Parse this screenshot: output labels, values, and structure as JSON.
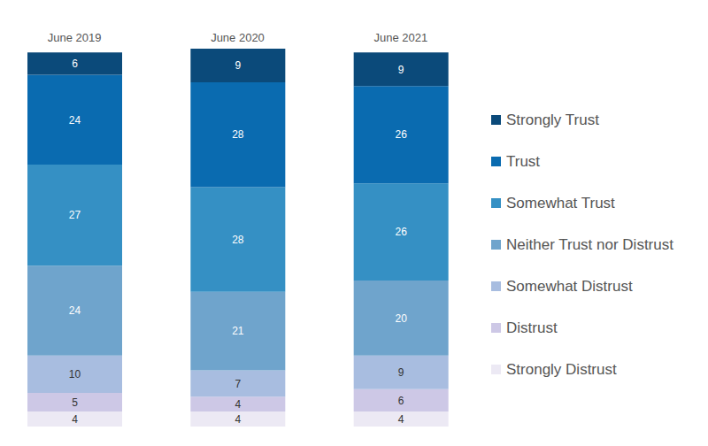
{
  "chart_data": {
    "type": "bar",
    "stacked": true,
    "data_labels": true,
    "tick_labels": "x",
    "legend": "right",
    "categories": [
      "June 2019",
      "June 2020",
      "June 2021"
    ],
    "series": [
      {
        "name": "Strongly Trust",
        "color": "#0b4a7a",
        "values": [
          6,
          9,
          9
        ]
      },
      {
        "name": "Trust",
        "color": "#0a6bb0",
        "values": [
          24,
          28,
          26
        ]
      },
      {
        "name": "Somewhat Trust",
        "color": "#3590c4",
        "values": [
          27,
          28,
          26
        ]
      },
      {
        "name": "Neither Trust nor Distrust",
        "color": "#6fa4cc",
        "values": [
          24,
          21,
          20
        ]
      },
      {
        "name": "Somewhat Distrust",
        "color": "#a8bde0",
        "values": [
          10,
          7,
          9
        ]
      },
      {
        "name": "Distrust",
        "color": "#cdc8e6",
        "values": [
          5,
          4,
          6
        ]
      },
      {
        "name": "Strongly Distrust",
        "color": "#ece9f4",
        "values": [
          4,
          4,
          4
        ]
      }
    ]
  }
}
